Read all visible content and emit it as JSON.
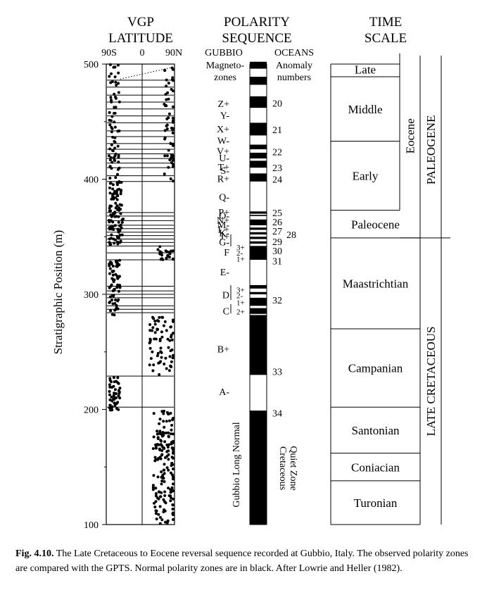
{
  "headers": {
    "vgp": [
      "VGP",
      "LATITUDE"
    ],
    "polarity": [
      "POLARITY",
      "SEQUENCE"
    ],
    "time": [
      "TIME",
      "SCALE"
    ]
  },
  "vgp_ticks": [
    "90S",
    "0",
    "90N"
  ],
  "subheaders": {
    "gubbio": "GUBBIO",
    "oceans": "OCEANS",
    "magnetozones": [
      "Magneto-",
      "zones"
    ],
    "anomaly": [
      "Anomaly",
      "numbers"
    ]
  },
  "y_axis": {
    "label": "Stratigraphic Position (m)",
    "range": [
      100,
      500
    ],
    "ticks": [
      "100",
      "200",
      "300",
      "400",
      "500"
    ]
  },
  "magnetozones": [
    {
      "label": "Z+",
      "m": 465
    },
    {
      "label": "Y-",
      "m": 455
    },
    {
      "label": "X+",
      "m": 443
    },
    {
      "label": "W-",
      "m": 433
    },
    {
      "label": "V+",
      "m": 424
    },
    {
      "label": "U-",
      "m": 418
    },
    {
      "label": "T+",
      "m": 410
    },
    {
      "label": "S-",
      "m": 407
    },
    {
      "label": "R+",
      "m": 400
    },
    {
      "label": "Q-",
      "m": 384
    },
    {
      "label": "P+",
      "m": 371
    },
    {
      "label": "O-",
      "m": 368
    },
    {
      "label": "N+",
      "m": 364
    },
    {
      "label": "M-",
      "m": 360
    },
    {
      "label": "L+",
      "m": 356
    },
    {
      "label": "K-",
      "m": 353
    },
    {
      "label": "J+",
      "m": 350
    },
    {
      "label": "G-",
      "m": 345
    },
    {
      "label": "F",
      "m": 336
    },
    {
      "label": "3+",
      "m": 341
    },
    {
      "label": "2-",
      "m": 336
    },
    {
      "label": "1+",
      "m": 331
    },
    {
      "label": "E-",
      "m": 319
    },
    {
      "label": "D",
      "m": 299
    },
    {
      "label": "3+",
      "m": 304
    },
    {
      "label": "2-",
      "m": 299
    },
    {
      "label": "1+",
      "m": 293
    },
    {
      "label": "C",
      "m": 285
    },
    {
      "label": "2+",
      "m": 285
    },
    {
      "label": "B+",
      "m": 252
    },
    {
      "label": "A-",
      "m": 215
    }
  ],
  "anomaly_numbers": [
    {
      "label": "20",
      "m": 466
    },
    {
      "label": "21",
      "m": 443
    },
    {
      "label": "22",
      "m": 424
    },
    {
      "label": "23",
      "m": 410
    },
    {
      "label": "24",
      "m": 400
    },
    {
      "label": "25",
      "m": 371
    },
    {
      "label": "26",
      "m": 363
    },
    {
      "label": "27",
      "m": 355
    },
    {
      "label": "28",
      "m": 352
    },
    {
      "label": "29",
      "m": 346
    },
    {
      "label": "30",
      "m": 338
    },
    {
      "label": "31",
      "m": 329
    },
    {
      "label": "32",
      "m": 295
    },
    {
      "label": "33",
      "m": 233
    },
    {
      "label": "34",
      "m": 197
    }
  ],
  "vertical_labels": {
    "gubbio_long_normal": "Gubbio Long Normal",
    "cretaceous_quiet_zone": [
      "Cretaceous",
      "Quiet Zone"
    ]
  },
  "normal_polarity_intervals_m": [
    [
      496,
      502
    ],
    [
      482,
      489
    ],
    [
      462,
      472
    ],
    [
      438,
      449
    ],
    [
      426,
      430
    ],
    [
      418,
      423
    ],
    [
      410,
      416
    ],
    [
      398,
      405
    ],
    [
      370,
      372
    ],
    [
      368,
      369
    ],
    [
      360,
      365
    ],
    [
      356,
      358
    ],
    [
      352,
      354
    ],
    [
      348,
      350
    ],
    [
      344,
      346
    ],
    [
      330,
      342
    ],
    [
      305,
      308
    ],
    [
      300,
      302
    ],
    [
      290,
      297
    ],
    [
      283,
      288
    ],
    [
      230,
      282
    ],
    [
      100,
      199
    ]
  ],
  "time_scale": {
    "stages": [
      {
        "name": "Late",
        "top_m": 502,
        "bottom_m": 489
      },
      {
        "name": "Middle",
        "top_m": 489,
        "bottom_m": 433
      },
      {
        "name": "Early",
        "top_m": 433,
        "bottom_m": 373
      },
      {
        "name": "Paleocene",
        "top_m": 373,
        "bottom_m": 349
      },
      {
        "name": "Maastrichtian",
        "top_m": 349,
        "bottom_m": 270
      },
      {
        "name": "Campanian",
        "top_m": 270,
        "bottom_m": 202
      },
      {
        "name": "Santonian",
        "top_m": 202,
        "bottom_m": 162
      },
      {
        "name": "Coniacian",
        "top_m": 162,
        "bottom_m": 138
      },
      {
        "name": "Turonian",
        "top_m": 138,
        "bottom_m": 100
      }
    ],
    "epoch": {
      "name": "Eocene",
      "top_m": 502,
      "bottom_m": 373
    },
    "periods": [
      {
        "name": "PALEOGENE",
        "top_m": 502,
        "bottom_m": 349
      },
      {
        "name": "LATE  CRETACEOUS",
        "top_m": 349,
        "bottom_m": 100
      }
    ]
  },
  "caption": {
    "label": "Fig. 4.10.",
    "text": "The Late Cretaceous to Eocene reversal sequence recorded at Gubbio, Italy. The observed polarity zones are compared with the GPTS. Normal polarity zones are in black. After Lowrie and Heller (1982)."
  },
  "vgp_data": {
    "segments": [
      {
        "type": "scatter",
        "m_from": 100,
        "m_to": 199,
        "lat_from": 30,
        "lat_to": 90,
        "n": 170
      },
      {
        "type": "scatter",
        "m_from": 199,
        "m_to": 230,
        "lat_from": -90,
        "lat_to": -60,
        "n": 45
      },
      {
        "type": "scatter",
        "m_from": 230,
        "m_to": 282,
        "lat_from": 20,
        "lat_to": 90,
        "n": 70
      },
      {
        "type": "scatter",
        "m_from": 282,
        "m_to": 330,
        "lat_from": -90,
        "lat_to": -60,
        "n": 70
      },
      {
        "type": "scatter",
        "m_from": 330,
        "m_to": 343,
        "lat_from": 40,
        "lat_to": 90,
        "n": 22
      },
      {
        "type": "scatter",
        "m_from": 343,
        "m_to": 372,
        "lat_from": -90,
        "lat_to": -50,
        "n": 55
      },
      {
        "type": "scatter",
        "m_from": 372,
        "m_to": 398,
        "lat_from": -90,
        "lat_to": -55,
        "n": 50
      },
      {
        "type": "scatter",
        "m_from": 398,
        "m_to": 449,
        "lat_from": -90,
        "lat_to": 90,
        "n": 70
      },
      {
        "type": "scatter",
        "m_from": 449,
        "m_to": 500,
        "lat_from": -90,
        "lat_to": 90,
        "n": 60
      }
    ],
    "transition_lines_m": [
      202,
      229,
      284,
      287,
      290,
      297,
      300,
      303,
      307,
      330,
      336,
      342,
      345,
      348,
      351,
      354,
      357,
      360,
      364,
      368,
      371,
      398,
      403,
      410,
      414,
      418,
      422,
      426,
      431,
      437,
      442,
      449,
      455,
      461,
      467,
      473,
      480,
      486
    ],
    "dotted_lines": [
      {
        "m_from": 199,
        "lat_from": -90,
        "m_to": 215,
        "lat_to": -70
      },
      {
        "m_from": 487,
        "lat_from": -60,
        "m_to": 497,
        "lat_to": 80
      }
    ]
  }
}
